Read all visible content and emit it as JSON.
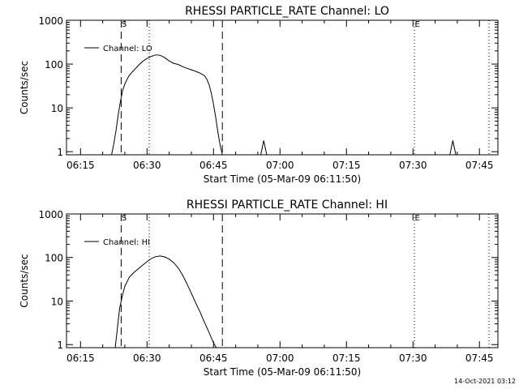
{
  "colors": {
    "background": "#ffffff",
    "foreground": "#000000"
  },
  "footer_timestamp": "14-Oct-2021 03:12",
  "chart_data": [
    {
      "type": "line",
      "title": "RHESSI PARTICLE_RATE Channel: LO",
      "xlabel": "Start Time (05-Mar-09 06:11:50)",
      "ylabel": "Counts/sec",
      "y_scale": "log",
      "xlim": [
        "06:11:50",
        "07:49:10"
      ],
      "ylim": [
        0.85,
        1000
      ],
      "x_ticks": [
        "06:15",
        "06:30",
        "06:45",
        "07:00",
        "07:15",
        "07:30",
        "07:45"
      ],
      "y_ticks": [
        "1",
        "10",
        "100",
        "1000"
      ],
      "legend": {
        "placement": "top-left",
        "label": "Channel: LO"
      },
      "markers": {
        "dashed": [
          "06:24:10",
          "06:47:00"
        ],
        "dotted": [
          "06:30:30",
          "07:30:20",
          "07:47:10"
        ],
        "letters": [
          {
            "text": "S",
            "time": "06:24:50"
          },
          {
            "text": "E",
            "time": "07:31:00"
          }
        ]
      },
      "series": [
        {
          "x": [
            "06:22:00",
            "06:22:30",
            "06:23:00",
            "06:23:30",
            "06:24:00",
            "06:24:30",
            "06:25:00",
            "06:25:30",
            "06:26:00",
            "06:27:00",
            "06:28:00",
            "06:29:00",
            "06:30:00",
            "06:31:00",
            "06:32:00",
            "06:33:00",
            "06:34:00",
            "06:35:00",
            "06:36:00",
            "06:37:00",
            "06:38:00",
            "06:39:00",
            "06:40:00",
            "06:41:00",
            "06:42:00",
            "06:43:00",
            "06:43:30",
            "06:44:00",
            "06:44:30",
            "06:45:00",
            "06:45:30",
            "06:46:00",
            "06:46:30",
            "06:47:00"
          ],
          "y": [
            0.85,
            1.5,
            3,
            7,
            14,
            25,
            35,
            45,
            55,
            72,
            92,
            115,
            135,
            150,
            162,
            158,
            140,
            118,
            104,
            98,
            88,
            80,
            74,
            68,
            62,
            54,
            45,
            34,
            22,
            12,
            6,
            2.8,
            1.4,
            0.85
          ],
          "segments": [
            {
              "x": [
                "06:55:40",
                "06:56:20",
                "06:57:00"
              ],
              "y": [
                0.85,
                1.8,
                0.85
              ]
            },
            {
              "x": [
                "07:38:20",
                "07:39:00",
                "07:39:40"
              ],
              "y": [
                0.85,
                1.8,
                0.85
              ]
            }
          ]
        }
      ]
    },
    {
      "type": "line",
      "title": "RHESSI PARTICLE_RATE Channel: HI",
      "xlabel": "Start Time (05-Mar-09 06:11:50)",
      "ylabel": "Counts/sec",
      "y_scale": "log",
      "xlim": [
        "06:11:50",
        "07:49:10"
      ],
      "ylim": [
        0.85,
        1000
      ],
      "x_ticks": [
        "06:15",
        "06:30",
        "06:45",
        "07:00",
        "07:15",
        "07:30",
        "07:45"
      ],
      "y_ticks": [
        "1",
        "10",
        "100",
        "1000"
      ],
      "legend": {
        "placement": "top-left",
        "label": "Channel: HI"
      },
      "markers": {
        "dashed": [
          "06:24:10",
          "06:47:00"
        ],
        "dotted": [
          "06:30:30",
          "07:30:20",
          "07:47:10"
        ],
        "letters": [
          {
            "text": "S",
            "time": "06:24:50"
          },
          {
            "text": "E",
            "time": "07:31:00"
          }
        ]
      },
      "series": [
        {
          "x": [
            "06:22:50",
            "06:23:20",
            "06:23:50",
            "06:24:30",
            "06:25:00",
            "06:26:00",
            "06:27:00",
            "06:28:00",
            "06:29:00",
            "06:30:00",
            "06:31:00",
            "06:32:00",
            "06:33:00",
            "06:34:00",
            "06:35:00",
            "06:36:00",
            "06:37:00",
            "06:38:00",
            "06:39:00",
            "06:40:00",
            "06:41:00",
            "06:42:00",
            "06:43:00",
            "06:44:00",
            "06:44:40",
            "06:45:20",
            "06:45:40"
          ],
          "y": [
            0.85,
            2.5,
            7,
            14,
            22,
            35,
            45,
            55,
            66,
            80,
            95,
            105,
            108,
            103,
            92,
            76,
            58,
            40,
            25,
            15,
            9,
            5.5,
            3.2,
            1.9,
            1.3,
            0.95,
            0.85
          ],
          "segments": []
        }
      ]
    }
  ]
}
